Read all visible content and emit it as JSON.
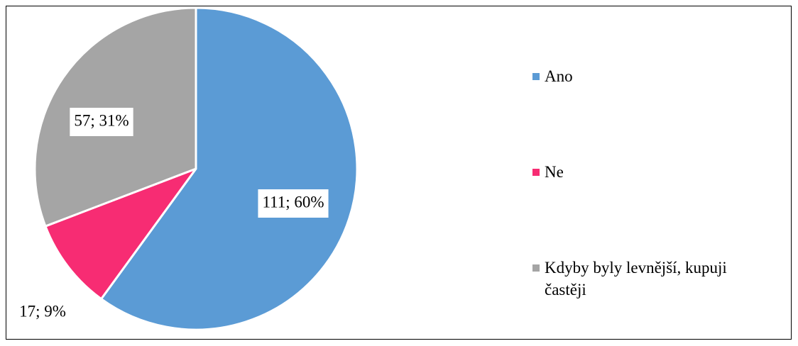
{
  "chart_data": {
    "type": "pie",
    "categories": [
      "Ano",
      "Ne",
      "Kdyby byly levnější, kupuji častěji"
    ],
    "values": [
      111,
      17,
      57
    ],
    "value_labels": [
      "111; 60%",
      "17; 9%",
      "57; 31%"
    ],
    "colors": [
      "#5b9bd5",
      "#f72c73",
      "#a5a5a5"
    ],
    "legend": "right"
  }
}
